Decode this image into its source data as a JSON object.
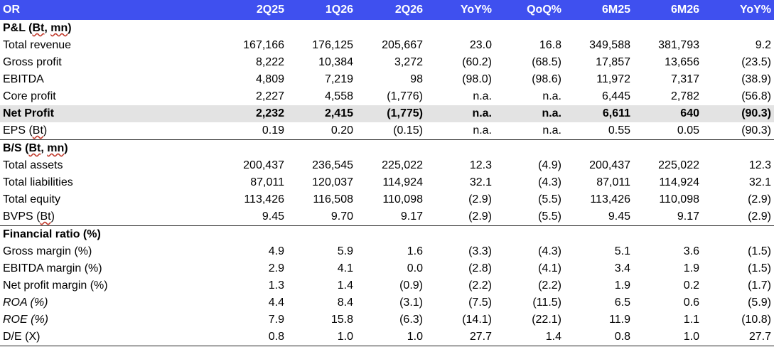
{
  "header": {
    "columns": [
      "OR",
      "2Q25",
      "1Q26",
      "2Q26",
      "YoY%",
      "QoQ%",
      "6M25",
      "6M26",
      "YoY%"
    ]
  },
  "sections": [
    {
      "title": "P&L (Bt, mn)",
      "rows": [
        {
          "label": "Total revenue",
          "values": [
            "167,166",
            "176,125",
            "205,667",
            "23.0",
            "16.8",
            "349,588",
            "381,793",
            "9.2"
          ]
        },
        {
          "label": "Gross profit",
          "values": [
            "8,222",
            "10,384",
            "3,272",
            "(60.2)",
            "(68.5)",
            "17,857",
            "13,656",
            "(23.5)"
          ]
        },
        {
          "label": "EBITDA",
          "values": [
            "4,809",
            "7,219",
            "98",
            "(98.0)",
            "(98.6)",
            "11,972",
            "7,317",
            "(38.9)"
          ]
        },
        {
          "label": "Core profit",
          "values": [
            "2,227",
            "4,558",
            "(1,776)",
            "n.a.",
            "n.a.",
            "6,445",
            "2,782",
            "(56.8)"
          ]
        },
        {
          "label": "Net Profit",
          "values": [
            "2,232",
            "2,415",
            "(1,775)",
            "n.a.",
            "n.a.",
            "6,611",
            "640",
            "(90.3)"
          ]
        },
        {
          "label": "EPS (Bt)",
          "values": [
            "0.19",
            "0.20",
            "(0.15)",
            "n.a.",
            "n.a.",
            "0.55",
            "0.05",
            "(90.3)"
          ]
        }
      ]
    },
    {
      "title": "B/S (Bt, mn)",
      "rows": [
        {
          "label": "Total assets",
          "values": [
            "200,437",
            "236,545",
            "225,022",
            "12.3",
            "(4.9)",
            "200,437",
            "225,022",
            "12.3"
          ]
        },
        {
          "label": "Total liabilities",
          "values": [
            "87,011",
            "120,037",
            "114,924",
            "32.1",
            "(4.3)",
            "87,011",
            "114,924",
            "32.1"
          ]
        },
        {
          "label": "Total equity",
          "values": [
            "113,426",
            "116,508",
            "110,098",
            "(2.9)",
            "(5.5)",
            "113,426",
            "110,098",
            "(2.9)"
          ]
        },
        {
          "label": "BVPS (Bt)",
          "values": [
            "9.45",
            "9.70",
            "9.17",
            "(2.9)",
            "(5.5)",
            "9.45",
            "9.17",
            "(2.9)"
          ]
        }
      ]
    },
    {
      "title": "Financial ratio (%)",
      "rows": [
        {
          "label": "Gross margin (%)",
          "values": [
            "4.9",
            "5.9",
            "1.6",
            "(3.3)",
            "(4.3)",
            "5.1",
            "3.6",
            "(1.5)"
          ]
        },
        {
          "label": "EBITDA margin (%)",
          "values": [
            "2.9",
            "4.1",
            "0.0",
            "(2.8)",
            "(4.1)",
            "3.4",
            "1.9",
            "(1.5)"
          ]
        },
        {
          "label": "Net profit margin (%)",
          "values": [
            "1.3",
            "1.4",
            "(0.9)",
            "(2.2)",
            "(2.2)",
            "1.9",
            "0.2",
            "(1.7)"
          ]
        },
        {
          "label": "ROA (%)",
          "values": [
            "4.4",
            "8.4",
            "(3.1)",
            "(7.5)",
            "(11.5)",
            "6.5",
            "0.6",
            "(5.9)"
          ]
        },
        {
          "label": "ROE (%)",
          "values": [
            "7.9",
            "15.8",
            "(6.3)",
            "(14.1)",
            "(22.1)",
            "11.9",
            "1.1",
            "(10.8)"
          ]
        },
        {
          "label": "D/E (X)",
          "values": [
            "0.8",
            "1.0",
            "1.0",
            "27.7",
            "1.4",
            "0.8",
            "1.0",
            "27.7"
          ]
        }
      ]
    }
  ],
  "colors": {
    "header_bg": "#3f50ef",
    "header_text": "#ffffff",
    "highlight_row_bg": "#e3e3e3"
  }
}
